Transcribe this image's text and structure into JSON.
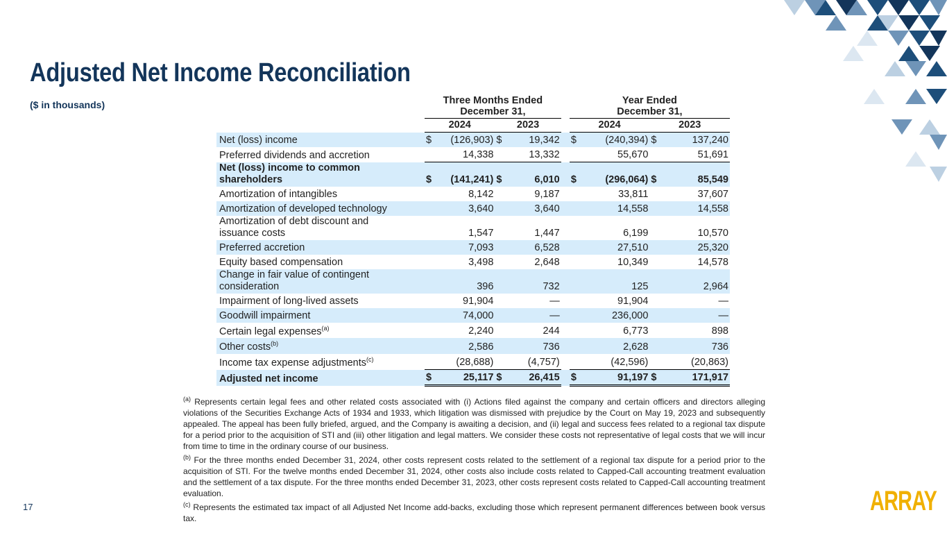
{
  "header": {
    "title": "Adjusted Net Income Reconciliation",
    "subtitle": "($ in thousands)"
  },
  "table": {
    "group_headers": [
      [
        "Three Months Ended",
        "December 31,"
      ],
      [
        "Year Ended",
        "December 31,"
      ]
    ],
    "columns": [
      "2024",
      "2023",
      "2024",
      "2023"
    ],
    "rows": [
      {
        "label": [
          "Net (loss) income"
        ],
        "currency": "$",
        "values": [
          "(126,903)",
          "19,342",
          "(240,394)",
          "137,240"
        ]
      },
      {
        "label": [
          "Preferred dividends and accretion"
        ],
        "values": [
          "14,338",
          "13,332",
          "55,670",
          "51,691"
        ]
      },
      {
        "label": [
          "Net (loss) income to common",
          "shareholders"
        ],
        "currency": "$",
        "bold": true,
        "values": [
          "(141,241)",
          "6,010",
          "(296,064)",
          "85,549"
        ]
      },
      {
        "label": [
          "Amortization of intangibles"
        ],
        "values": [
          "8,142",
          "9,187",
          "33,811",
          "37,607"
        ]
      },
      {
        "label": [
          "Amortization of developed technology"
        ],
        "values": [
          "3,640",
          "3,640",
          "14,558",
          "14,558"
        ]
      },
      {
        "label": [
          "Amortization of debt discount and",
          "issuance costs"
        ],
        "values": [
          "1,547",
          "1,447",
          "6,199",
          "10,570"
        ]
      },
      {
        "label": [
          "Preferred accretion"
        ],
        "values": [
          "7,093",
          "6,528",
          "27,510",
          "25,320"
        ]
      },
      {
        "label": [
          "Equity based compensation"
        ],
        "values": [
          "3,498",
          "2,648",
          "10,349",
          "14,578"
        ]
      },
      {
        "label": [
          "Change in fair value of contingent",
          "consideration"
        ],
        "values": [
          "396",
          "732",
          "125",
          "2,964"
        ]
      },
      {
        "label": [
          "Impairment of long-lived assets"
        ],
        "values": [
          "91,904",
          "—",
          "91,904",
          "—"
        ]
      },
      {
        "label": [
          "Goodwill impairment"
        ],
        "values": [
          "74,000",
          "—",
          "236,000",
          "—"
        ]
      },
      {
        "label": [
          "Certain legal expenses"
        ],
        "note": "(a)",
        "values": [
          "2,240",
          "244",
          "6,773",
          "898"
        ]
      },
      {
        "label": [
          "Other costs"
        ],
        "note": "(b)",
        "values": [
          "2,586",
          "736",
          "2,628",
          "736"
        ]
      },
      {
        "label": [
          "Income tax expense adjustments"
        ],
        "note": "(c)",
        "values": [
          "(28,688)",
          "(4,757)",
          "(42,596)",
          "(20,863)"
        ]
      },
      {
        "label": [
          "Adjusted net income"
        ],
        "currency": "$",
        "bold": true,
        "values": [
          "25,117",
          "26,415",
          "91,197",
          "171,917"
        ]
      }
    ]
  },
  "footnotes": [
    {
      "marker": "(a)",
      "text": "Represents certain legal fees and other related costs associated with (i) Actions filed against the company and certain officers and directors alleging violations of the Securities Exchange Acts of 1934 and 1933, which litigation was dismissed with prejudice by the Court on May 19, 2023 and subsequently appealed. The appeal has been fully briefed, argued, and the Company is awaiting a decision, and (ii) legal and success fees related to a regional tax dispute for a period prior to the acquisition of STI and (iii) other litigation and legal matters. We consider these costs not representative of legal costs that we will incur from time to time in the ordinary course of our business."
    },
    {
      "marker": "(b)",
      "text": "For the three months ended December 31, 2024, other costs represent costs related to the settlement of a regional tax dispute for a period prior to the acquisition of STI. For the twelve months ended December 31, 2024, other costs also include costs related to Capped-Call accounting treatment evaluation and the settlement of a tax dispute. For the three months ended December 31, 2023, other costs represent costs related to Capped-Call accounting treatment evaluation."
    },
    {
      "marker": "(c)",
      "text": "Represents the estimated tax impact of all Adjusted Net Income add-backs, excluding those which represent permanent differences between book versus tax."
    }
  ],
  "page_number": "17",
  "logo": "ARRAY"
}
